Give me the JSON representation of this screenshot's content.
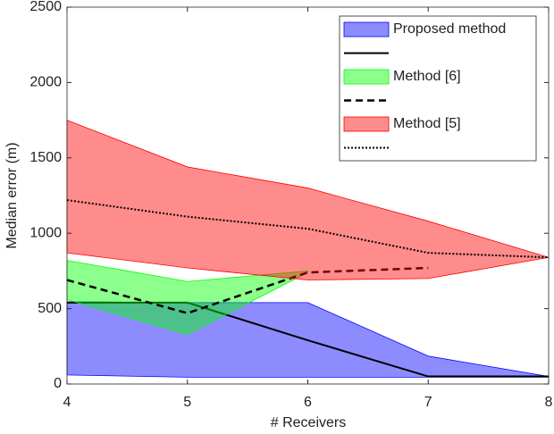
{
  "chart_data": {
    "type": "band",
    "xlabel": "# Receivers",
    "ylabel": "Median error (m)",
    "x": [
      4,
      5,
      6,
      7,
      8
    ],
    "xlim": [
      4,
      8
    ],
    "xticks": [
      4,
      5,
      6,
      7,
      8
    ],
    "ylim": [
      0,
      2500
    ],
    "yticks": [
      0,
      500,
      1000,
      1500,
      2000,
      2500
    ],
    "legend": "top-right",
    "series": [
      {
        "name": "Proposed method",
        "color": "#0000ff",
        "lower": [
          60,
          45,
          45,
          45,
          45
        ],
        "upper": [
          545,
          540,
          540,
          185,
          50
        ]
      },
      {
        "color": "#000000",
        "style": "solid",
        "values": [
          540,
          540,
          290,
          50,
          50
        ]
      },
      {
        "name": "Method [6]",
        "color": "#00ff00",
        "lower": [
          560,
          330,
          740,
          null,
          null
        ],
        "upper": [
          820,
          680,
          750,
          null,
          null
        ]
      },
      {
        "color": "#000000",
        "style": "dashed",
        "values": [
          690,
          470,
          740,
          770,
          null
        ]
      },
      {
        "name": "Method [5]",
        "color": "#ff0000",
        "lower": [
          870,
          770,
          690,
          700,
          840
        ],
        "upper": [
          1750,
          1440,
          1300,
          1080,
          840
        ]
      },
      {
        "color": "#000000",
        "style": "dotted",
        "values": [
          1220,
          1110,
          1030,
          870,
          840
        ]
      }
    ]
  }
}
